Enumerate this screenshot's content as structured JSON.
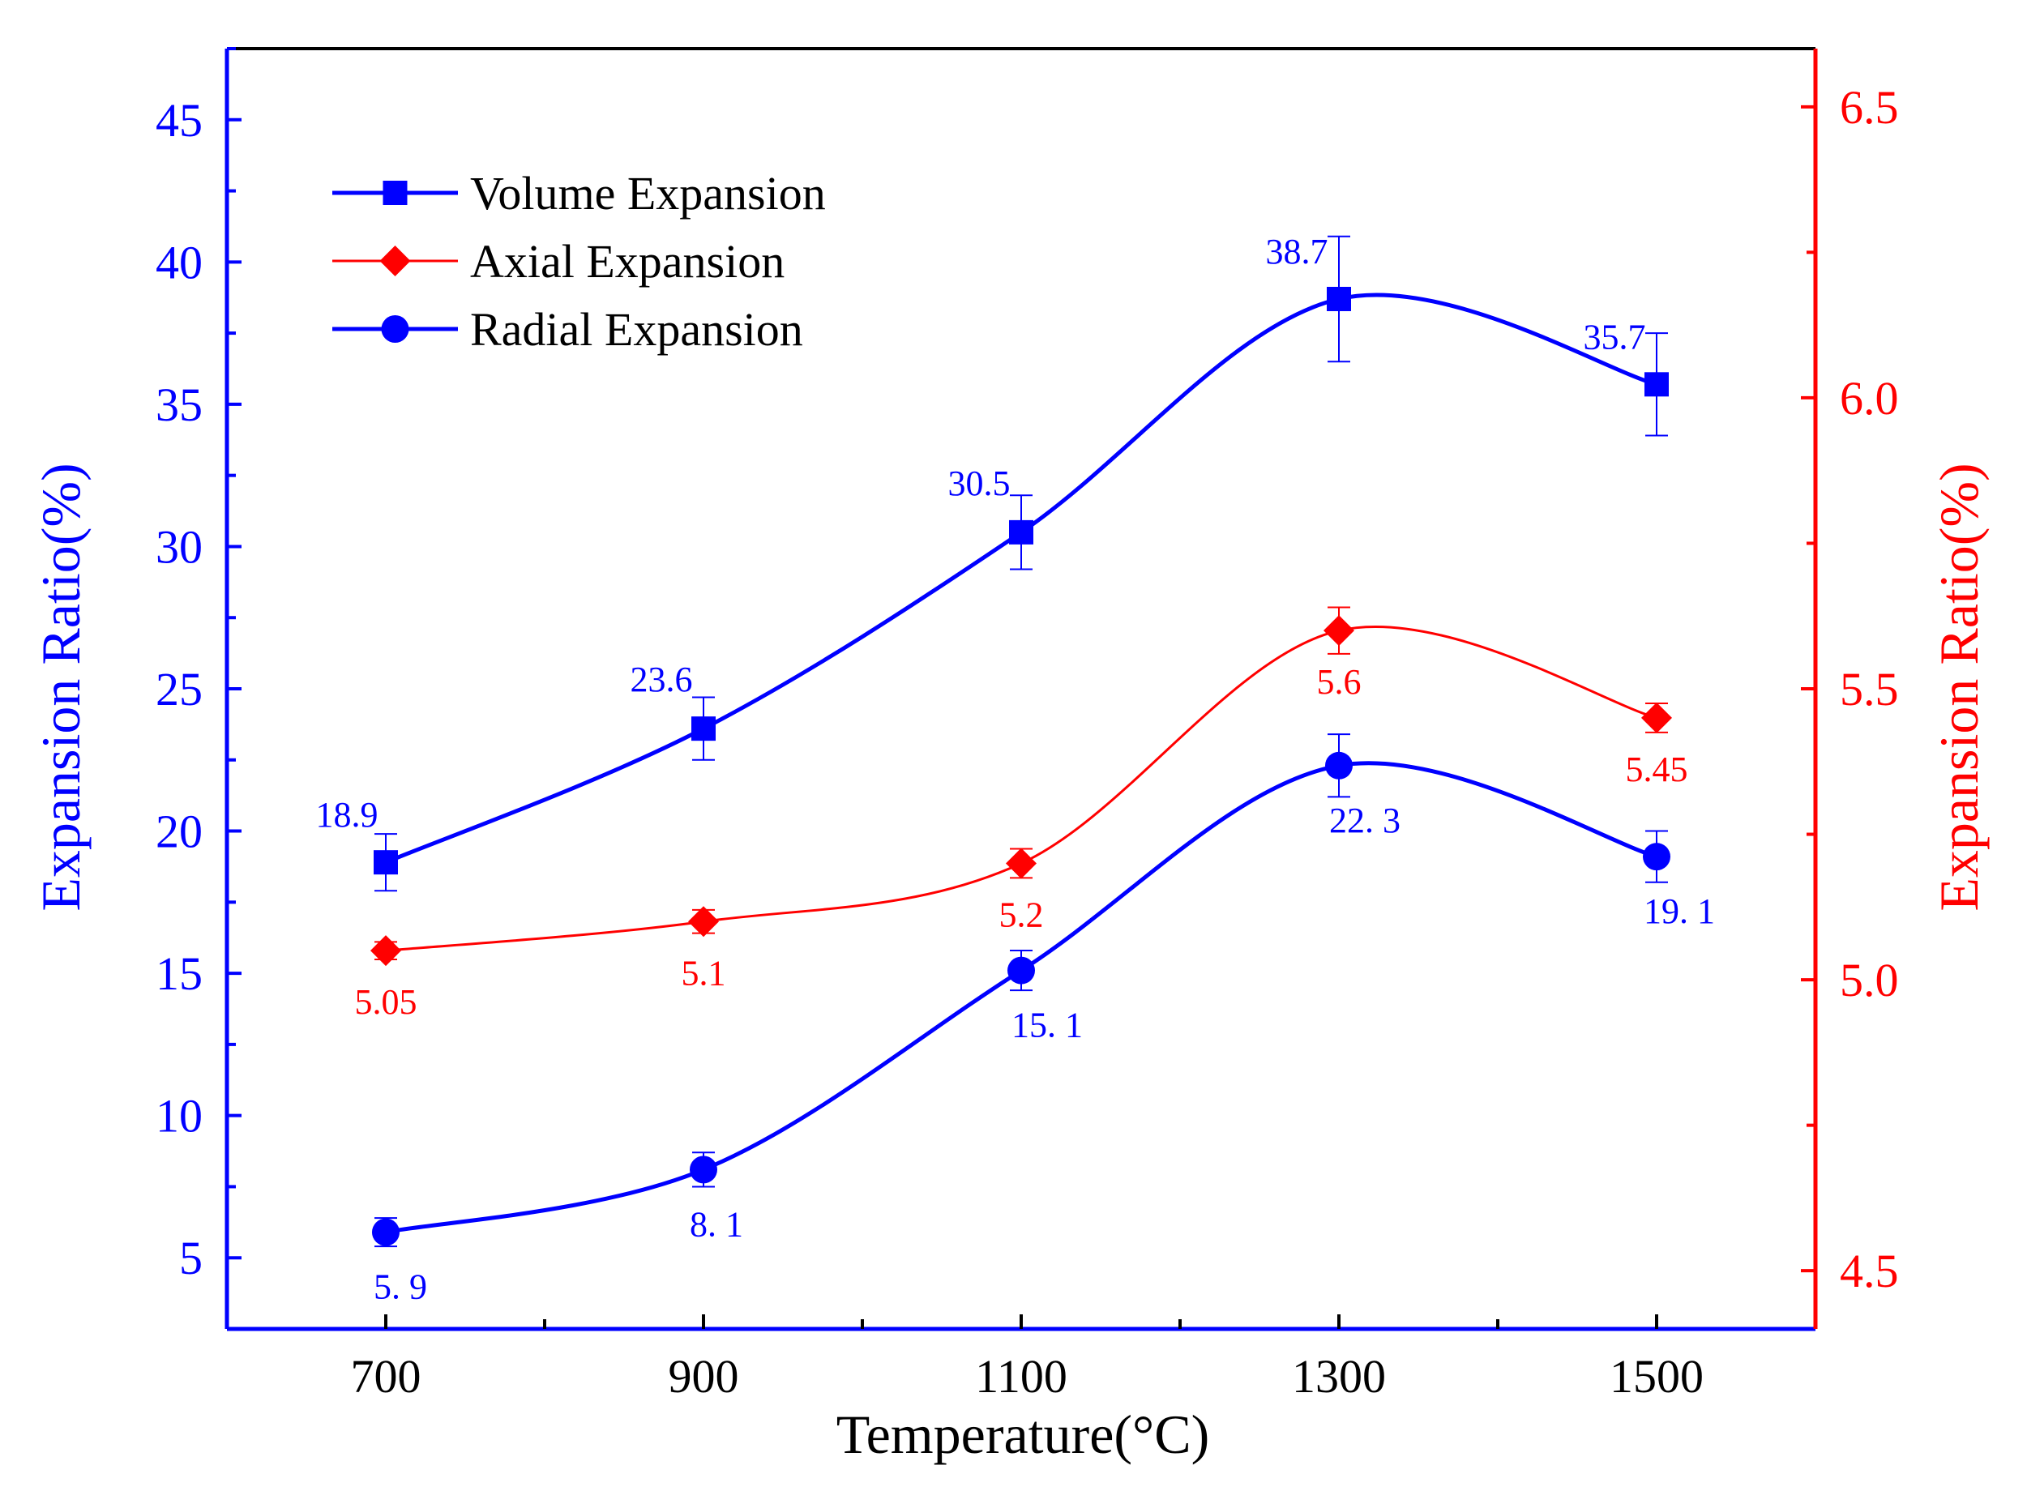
{
  "chart_data": {
    "type": "line",
    "x": [
      700,
      900,
      1100,
      1300,
      1500
    ],
    "x_tick_labels": [
      "700",
      "900",
      "1100",
      "1300",
      "1500"
    ],
    "xlabel": "Temperature(°C)",
    "xlim": [
      600,
      1600
    ],
    "ylabel_left": "Expansion Ratio(%)",
    "ylim_left": [
      2.5,
      47.5
    ],
    "y_left_ticks": [
      5,
      10,
      15,
      20,
      25,
      30,
      35,
      40,
      45
    ],
    "y_left_tick_labels": [
      "5",
      "10",
      "15",
      "20",
      "25",
      "30",
      "35",
      "40",
      "45"
    ],
    "ylabel_right": "Expansion Ratio(%)",
    "ylim_right": [
      4.4,
      6.6
    ],
    "y_right_ticks": [
      4.5,
      5.0,
      5.5,
      6.0,
      6.5
    ],
    "y_right_tick_labels": [
      "4.5",
      "5.0",
      "5.5",
      "6.0",
      "6.5"
    ],
    "grid": false,
    "legend_position": "top-left",
    "series": [
      {
        "name": "Volume Expansion",
        "axis": "left",
        "color": "#0000ff",
        "marker": "square",
        "values": [
          18.9,
          23.6,
          30.5,
          38.7,
          35.7
        ],
        "errors": [
          1.0,
          1.1,
          1.3,
          2.2,
          1.8
        ],
        "labels": [
          "18.9",
          "23.6",
          "30.5",
          "38.7",
          "35.7"
        ]
      },
      {
        "name": "Axial Expansion",
        "axis": "right",
        "color": "#ff0000",
        "marker": "diamond",
        "values": [
          5.05,
          5.1,
          5.2,
          5.6,
          5.45
        ],
        "errors": [
          0.015,
          0.02,
          0.025,
          0.04,
          0.025
        ],
        "labels": [
          "5.05",
          "5.1",
          "5.2",
          "5.6",
          "5.45"
        ]
      },
      {
        "name": "Radial Expansion",
        "axis": "left",
        "color": "#0000ff",
        "marker": "circle",
        "values": [
          5.9,
          8.1,
          15.1,
          22.3,
          19.1
        ],
        "errors": [
          0.5,
          0.6,
          0.7,
          1.1,
          0.9
        ],
        "labels": [
          "5. 9",
          "8. 1",
          "15. 1",
          "22. 3",
          "19. 1"
        ]
      }
    ]
  }
}
